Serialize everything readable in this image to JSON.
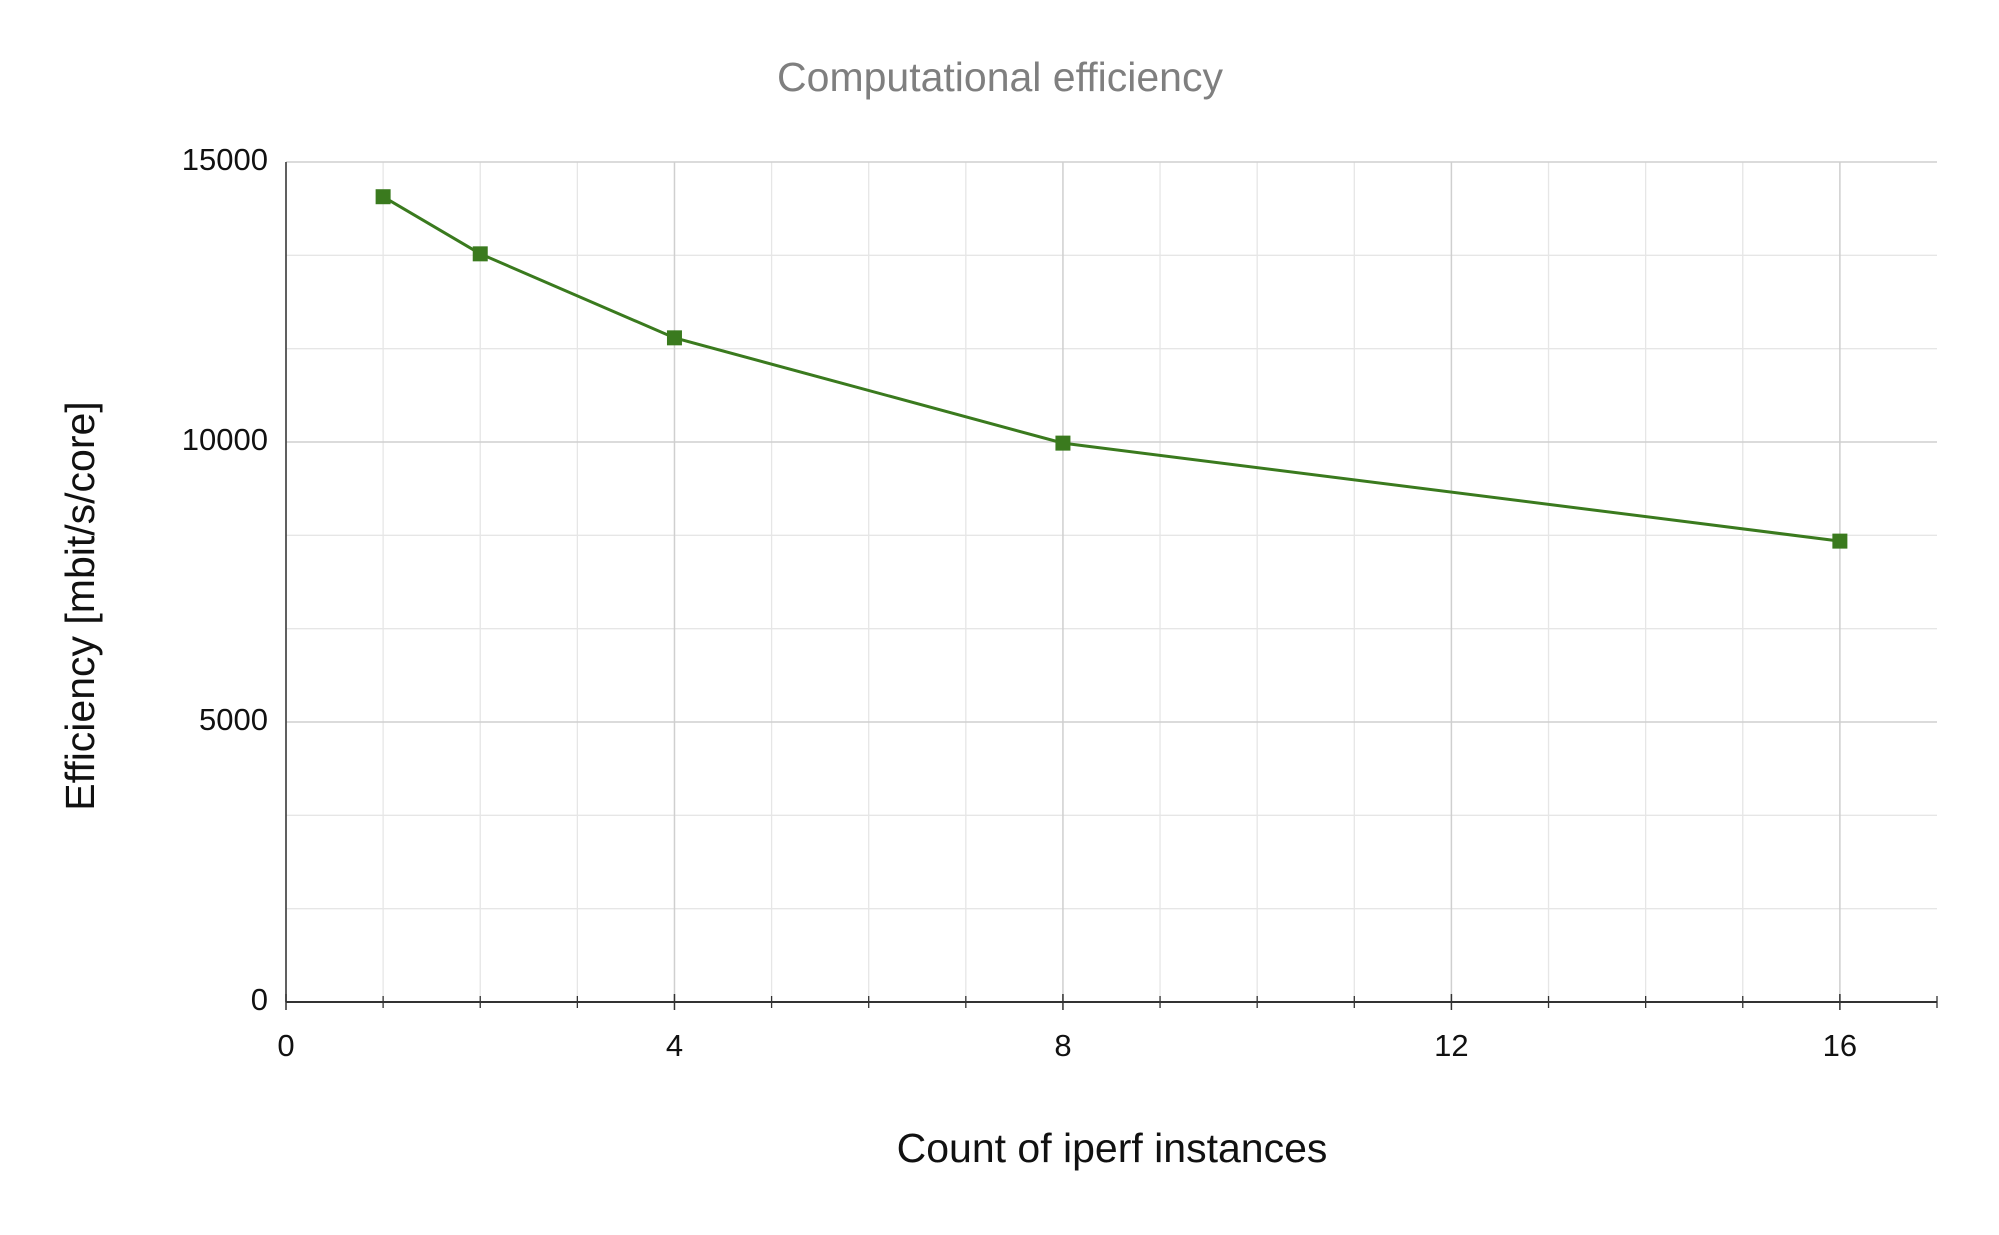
{
  "chart_data": {
    "type": "line",
    "title": "Computational efficiency",
    "x_label": "Count of iperf instances",
    "y_label": "Efficiency [mbit/s/core]",
    "x": [
      1,
      2,
      4,
      8,
      16
    ],
    "series": [
      {
        "name": "Efficiency",
        "color": "#3a7a1e",
        "values": [
          14380,
          13360,
          11860,
          9980,
          8230
        ]
      }
    ],
    "xlim": [
      0,
      17
    ],
    "xticks": [
      0,
      4,
      8,
      12,
      16
    ],
    "ylim": [
      0,
      15000
    ],
    "yticks": [
      0,
      5000,
      10000,
      15000
    ],
    "grid": true,
    "legend": false
  }
}
